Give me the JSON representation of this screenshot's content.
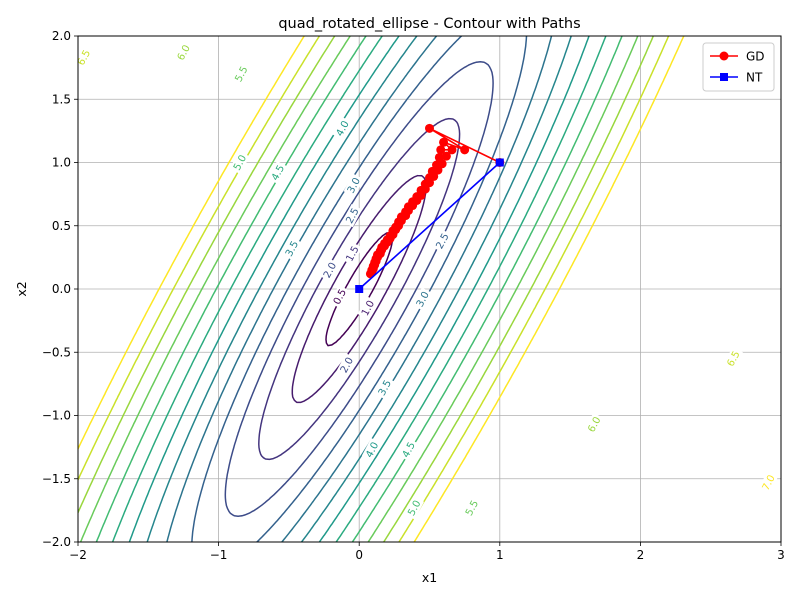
{
  "chart_data": {
    "type": "line",
    "title": "quad_rotated_ellipse - Contour with Paths",
    "xlabel": "x1",
    "ylabel": "x2",
    "xlim": [
      -2,
      3
    ],
    "ylim": [
      -2,
      2
    ],
    "xticks": [
      "−2",
      "−1",
      "0",
      "1",
      "2",
      "3"
    ],
    "xtick_values": [
      -2,
      -1,
      0,
      1,
      2,
      3
    ],
    "yticks": [
      "−2.0",
      "−1.5",
      "−1.0",
      "−0.5",
      "0.0",
      "0.5",
      "1.0",
      "1.5",
      "2.0"
    ],
    "ytick_values": [
      -2,
      -1.5,
      -1,
      -0.5,
      0,
      0.5,
      1,
      1.5,
      2
    ],
    "grid": true,
    "legend_position": "top-right",
    "contour_colormap": "viridis",
    "contour_levels": [
      0.5,
      1.0,
      1.5,
      2.0,
      2.5,
      3.0,
      3.5,
      4.0,
      4.5,
      5.0,
      5.5,
      6.0,
      6.5,
      7.0
    ],
    "contour_labels": [
      {
        "text": "0.5",
        "x": -0.14,
        "y": -0.06
      },
      {
        "text": "1.0",
        "x": 0.06,
        "y": -0.15
      },
      {
        "text": "1.5",
        "x": -0.05,
        "y": 0.28
      },
      {
        "text": "2.0",
        "x": -0.21,
        "y": 0.15
      },
      {
        "text": "2.0",
        "x": -0.09,
        "y": -0.6
      },
      {
        "text": "2.5",
        "x": -0.05,
        "y": 0.58
      },
      {
        "text": "2.5",
        "x": 0.59,
        "y": 0.38
      },
      {
        "text": "3.0",
        "x": -0.04,
        "y": 0.82
      },
      {
        "text": "3.0",
        "x": 0.45,
        "y": -0.08
      },
      {
        "text": "3.5",
        "x": -0.48,
        "y": 0.32
      },
      {
        "text": "3.5",
        "x": 0.18,
        "y": -0.78
      },
      {
        "text": "4.0",
        "x": -0.12,
        "y": 1.27
      },
      {
        "text": "4.0",
        "x": 0.09,
        "y": -1.27
      },
      {
        "text": "4.5",
        "x": -0.58,
        "y": 0.92
      },
      {
        "text": "4.5",
        "x": 0.35,
        "y": -1.27
      },
      {
        "text": "5.0",
        "x": -0.85,
        "y": 1.0
      },
      {
        "text": "5.0",
        "x": 0.39,
        "y": -1.73
      },
      {
        "text": "5.5",
        "x": -0.84,
        "y": 1.7
      },
      {
        "text": "5.5",
        "x": 0.8,
        "y": -1.73
      },
      {
        "text": "6.0",
        "x": -1.25,
        "y": 1.87
      },
      {
        "text": "6.0",
        "x": 1.67,
        "y": -1.07
      },
      {
        "text": "6.5",
        "x": -1.96,
        "y": 1.83
      },
      {
        "text": "6.5",
        "x": 2.66,
        "y": -0.55
      },
      {
        "text": "7.0",
        "x": 2.91,
        "y": -1.53
      }
    ],
    "series": [
      {
        "name": "GD",
        "color": "#ff0000",
        "marker": "circle",
        "x": [
          1.0,
          0.5,
          0.75,
          0.6,
          0.66,
          0.58,
          0.62,
          0.57,
          0.59,
          0.55,
          0.56,
          0.52,
          0.53,
          0.5,
          0.5,
          0.47,
          0.47,
          0.44,
          0.44,
          0.41,
          0.41,
          0.38,
          0.38,
          0.35,
          0.35,
          0.33,
          0.33,
          0.3,
          0.3,
          0.28,
          0.28,
          0.26,
          0.26,
          0.24,
          0.24,
          0.22,
          0.22,
          0.2,
          0.2,
          0.18,
          0.18,
          0.16,
          0.16,
          0.15,
          0.15,
          0.13,
          0.13,
          0.12,
          0.12,
          0.11,
          0.11,
          0.1,
          0.1,
          0.09,
          0.09,
          0.08
        ],
        "y": [
          1.0,
          1.27,
          1.1,
          1.16,
          1.1,
          1.1,
          1.05,
          1.04,
          0.99,
          0.98,
          0.94,
          0.93,
          0.89,
          0.88,
          0.84,
          0.83,
          0.79,
          0.78,
          0.74,
          0.73,
          0.7,
          0.69,
          0.66,
          0.65,
          0.62,
          0.61,
          0.58,
          0.57,
          0.54,
          0.53,
          0.5,
          0.49,
          0.47,
          0.46,
          0.43,
          0.42,
          0.4,
          0.39,
          0.37,
          0.36,
          0.34,
          0.33,
          0.31,
          0.3,
          0.28,
          0.27,
          0.25,
          0.24,
          0.22,
          0.21,
          0.19,
          0.18,
          0.16,
          0.15,
          0.14,
          0.12
        ]
      },
      {
        "name": "NT",
        "color": "#0000ff",
        "marker": "square",
        "x": [
          1.0,
          0.0
        ],
        "y": [
          1.0,
          0.0
        ]
      }
    ]
  }
}
